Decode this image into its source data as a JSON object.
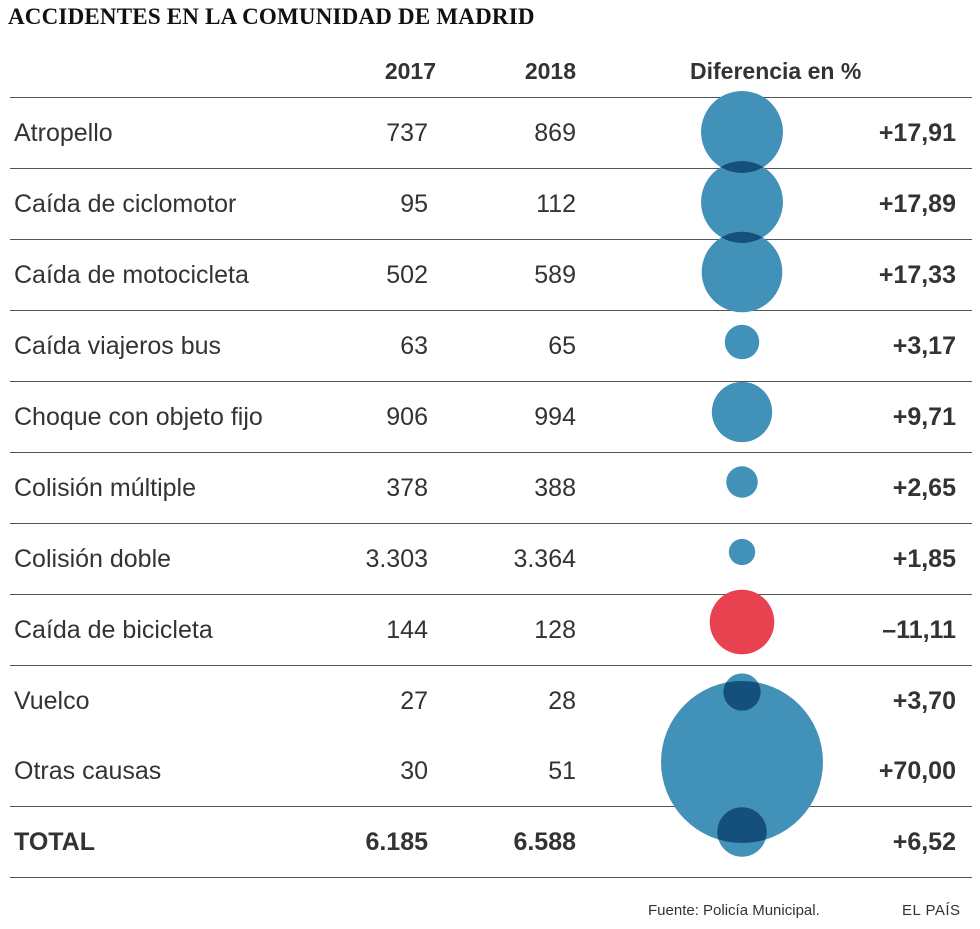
{
  "title": "ACCIDENTES EN LA COMUNIDAD DE MADRID",
  "headers": {
    "y2017": "2017",
    "y2018": "2018",
    "diff": "Diferencia en %"
  },
  "rows": [
    {
      "label": "Atropello",
      "y2017": "737",
      "y2018": "869",
      "diff": "+17,91"
    },
    {
      "label": "Caída de ciclomotor",
      "y2017": "95",
      "y2018": "112",
      "diff": "+17,89"
    },
    {
      "label": "Caída de motocicleta",
      "y2017": "502",
      "y2018": "589",
      "diff": "+17,33"
    },
    {
      "label": "Caída viajeros bus",
      "y2017": "63",
      "y2018": "65",
      "diff": "+3,17"
    },
    {
      "label": "Choque con objeto fijo",
      "y2017": "906",
      "y2018": "994",
      "diff": "+9,71"
    },
    {
      "label": "Colisión múltiple",
      "y2017": "378",
      "y2018": "388",
      "diff": "+2,65"
    },
    {
      "label": "Colisión doble",
      "y2017": "3.303",
      "y2018": "3.364",
      "diff": "+1,85"
    },
    {
      "label": "Caída de bicicleta",
      "y2017": "144",
      "y2018": "128",
      "diff": "–11,11"
    },
    {
      "label": "Vuelco",
      "y2017": "27",
      "y2018": "28",
      "diff": "+3,70"
    },
    {
      "label": "Otras causas",
      "y2017": "30",
      "y2018": "51",
      "diff": "+70,00"
    },
    {
      "label": "TOTAL",
      "y2017": "6.185",
      "y2018": "6.588",
      "diff": "+6,52"
    }
  ],
  "footer": {
    "source": "Fuente: Policía Municipal.",
    "brand": "EL PAÍS"
  },
  "colors": {
    "positive": "#4291b8",
    "negative": "#e84150",
    "overlap": "#154f7c"
  },
  "chart_data": {
    "type": "table",
    "title": "ACCIDENTES EN LA COMUNIDAD DE MADRID",
    "columns": [
      "2017",
      "2018",
      "Diferencia en %"
    ],
    "categories": [
      "Atropello",
      "Caída de ciclomotor",
      "Caída de motocicleta",
      "Caída viajeros bus",
      "Choque con objeto fijo",
      "Colisión múltiple",
      "Colisión doble",
      "Caída de bicicleta",
      "Vuelco",
      "Otras causas",
      "TOTAL"
    ],
    "series": [
      {
        "name": "2017",
        "values": [
          737,
          95,
          502,
          63,
          906,
          378,
          3303,
          144,
          27,
          30,
          6185
        ]
      },
      {
        "name": "2018",
        "values": [
          869,
          112,
          589,
          65,
          994,
          388,
          3364,
          128,
          28,
          51,
          6588
        ]
      },
      {
        "name": "Diferencia en %",
        "values": [
          17.91,
          17.89,
          17.33,
          3.17,
          9.71,
          2.65,
          1.85,
          -11.11,
          3.7,
          70.0,
          6.52
        ]
      }
    ]
  }
}
